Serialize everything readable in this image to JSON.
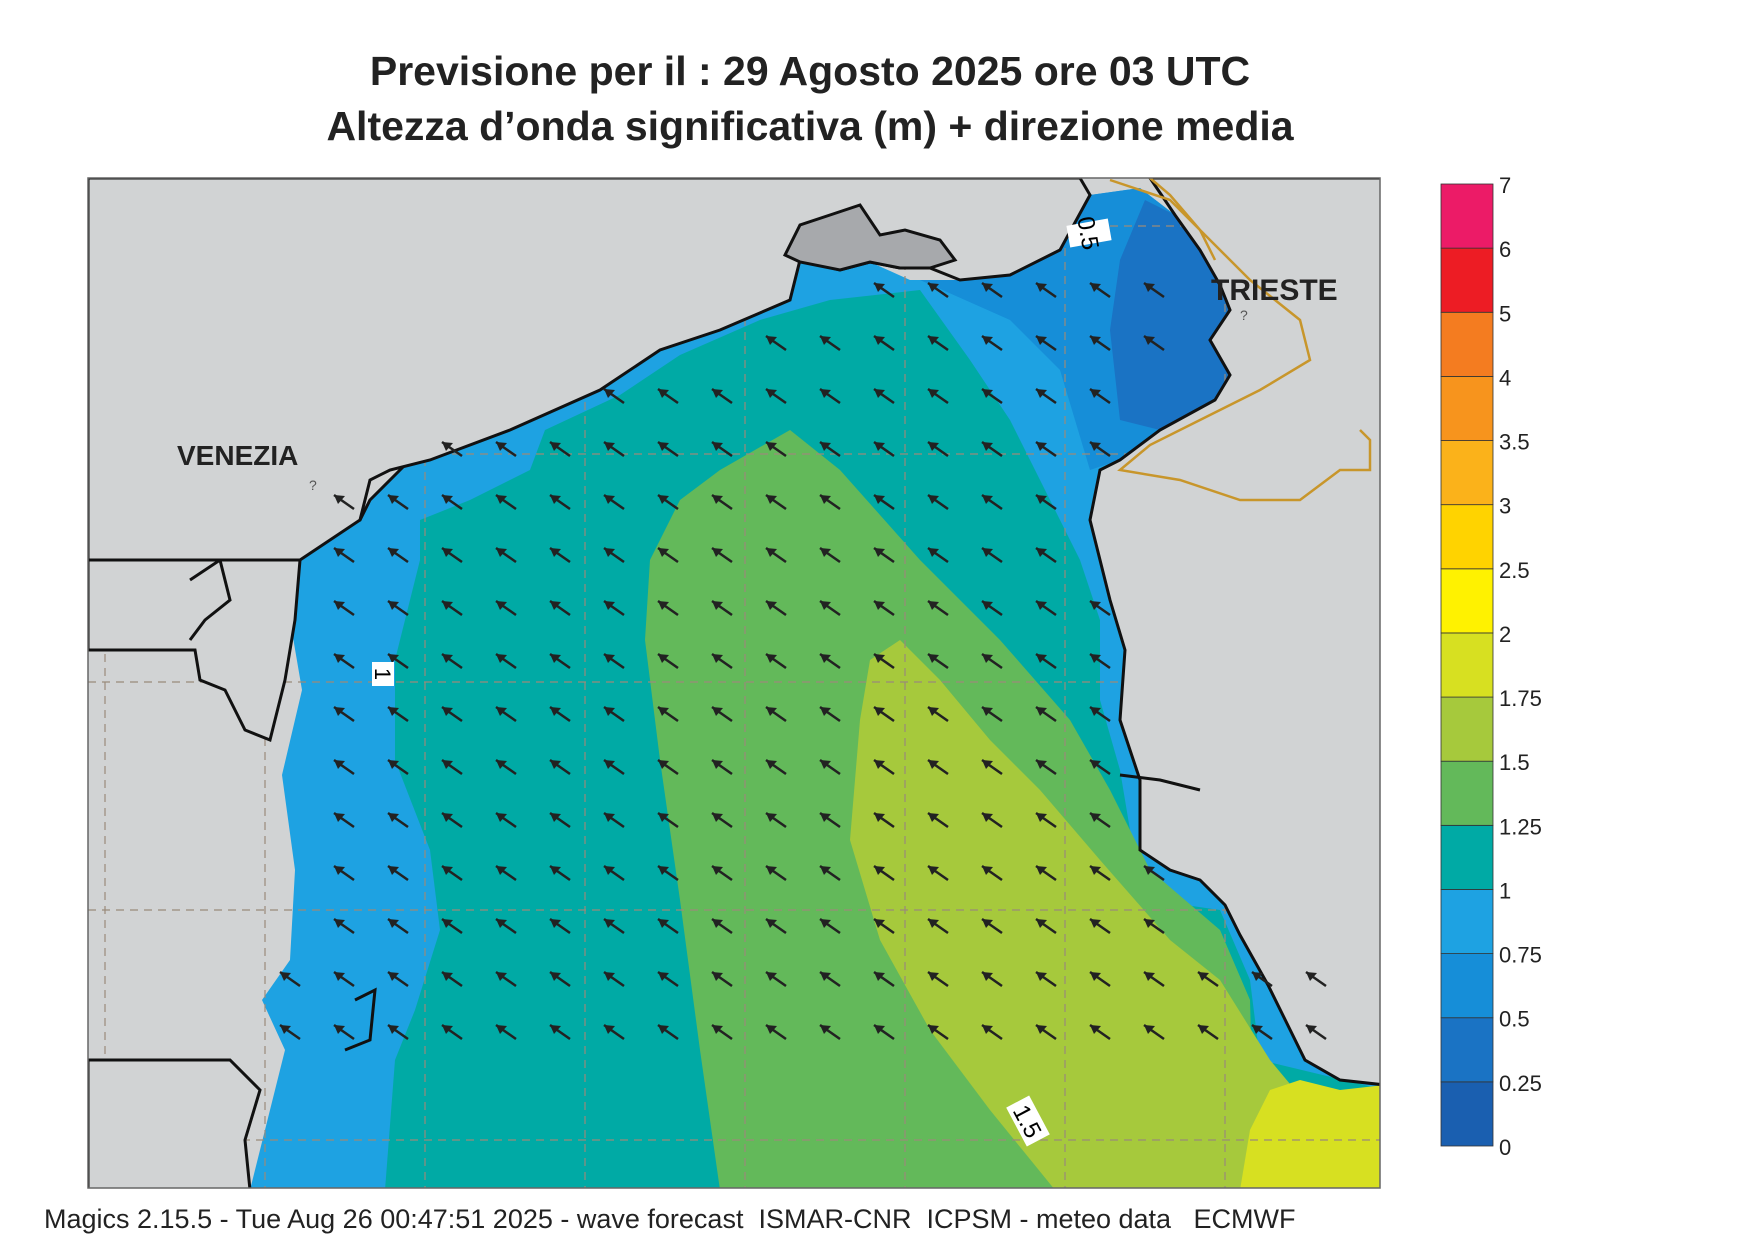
{
  "title": {
    "line1": "Previsione per il  :  29   Agosto  2025   ore 03 UTC",
    "line2": "Altezza d’onda significativa (m) + direzione media"
  },
  "cities": [
    {
      "name": "VENEZIA"
    },
    {
      "name": "TRIESTE"
    }
  ],
  "contour_labels": [
    "0.5",
    "1",
    "1.5"
  ],
  "legend": {
    "ticks": [
      "7",
      "6",
      "5",
      "4",
      "3.5",
      "3",
      "2.5",
      "2",
      "1.75",
      "1.5",
      "1.25",
      "1",
      "0.75",
      "0.5",
      "0.25",
      "0"
    ],
    "colors_bottom_to_top": [
      "#1a5fb0",
      "#1a73c4",
      "#168ed8",
      "#1ea2e2",
      "#00aaa5",
      "#63b95a",
      "#a6c93c",
      "#d7e021",
      "#fff200",
      "#ffd300",
      "#fbb21a",
      "#f7941d",
      "#f47c20",
      "#ed1c24",
      "#ec1b67"
    ]
  },
  "arrows": {
    "color": "#222222",
    "direction": "north-west"
  },
  "colors": {
    "land": "#d1d3d4",
    "coast": "#111111",
    "border": "#c8962b",
    "grid": "#9a8a7a"
  },
  "footer": "Magics 2.15.5 - Tue Aug 26 00:47:51 2025 - wave forecast  ISMAR-CNR  ICPSM - meteo data   ECMWF"
}
